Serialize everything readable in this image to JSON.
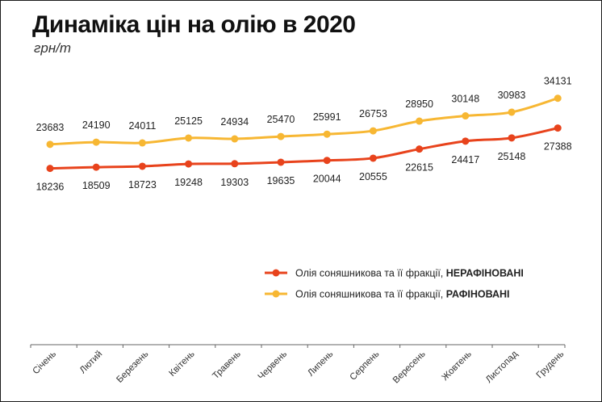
{
  "chart_data": {
    "type": "line",
    "title": "Динаміка цін на олію в 2020",
    "subtitle": "грн/т",
    "categories": [
      "Січень",
      "Лютий",
      "Березень",
      "Квітень",
      "Травень",
      "Червень",
      "Липень",
      "Серпень",
      "Вересень",
      "Жовтень",
      "Листопад",
      "Грудень"
    ],
    "ylim": [
      15000,
      36000
    ],
    "grid": false,
    "legend_position": "right",
    "series": [
      {
        "name_prefix": "Олія соняшникова та її фракції, ",
        "name_suffix": "НЕРАФІНОВАНІ",
        "color": "#e8431c",
        "values": [
          18236,
          18509,
          18723,
          19248,
          19303,
          19635,
          20044,
          20555,
          22615,
          24417,
          25148,
          27388
        ],
        "label_position": "below"
      },
      {
        "name_prefix": "Олія соняшникова та її фракції, ",
        "name_suffix": "РАФІНОВАНІ",
        "color": "#f7b733",
        "values": [
          23683,
          24190,
          24011,
          25125,
          24934,
          25470,
          25991,
          26753,
          28950,
          30148,
          30983,
          34131
        ],
        "label_position": "above"
      }
    ]
  }
}
